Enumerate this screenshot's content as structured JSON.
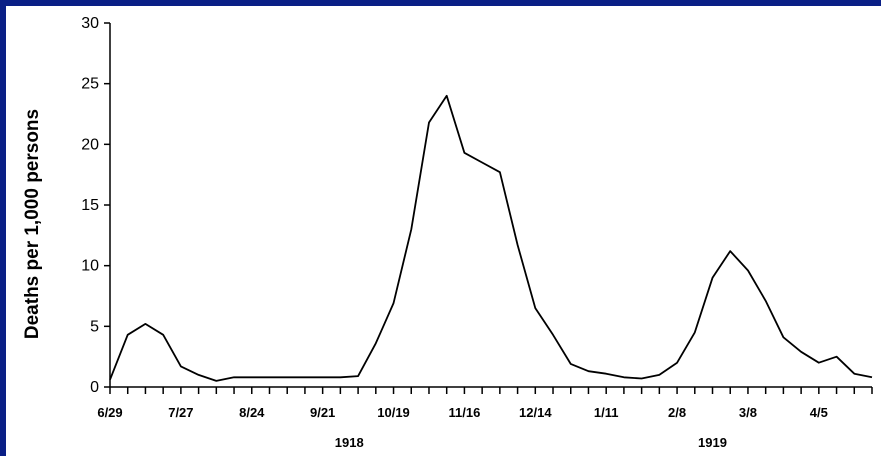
{
  "colors": {
    "border": "#0a1f86",
    "background": "#ffffff",
    "line": "#000000"
  },
  "chart_data": {
    "type": "line",
    "title": "",
    "xlabel": "",
    "ylabel": "Deaths per 1,000 persons",
    "ylim": [
      0,
      30
    ],
    "yticks": [
      0,
      5,
      10,
      15,
      20,
      25,
      30
    ],
    "grid": false,
    "legend": "none",
    "x_tick_labels": [
      "6/29",
      "7/27",
      "8/24",
      "9/21",
      "10/19",
      "11/16",
      "12/14",
      "1/11",
      "2/8",
      "3/8",
      "4/5"
    ],
    "x_tick_label_week_index": [
      0,
      4,
      8,
      12,
      16,
      20,
      24,
      28,
      32,
      36,
      40
    ],
    "year_labels": [
      {
        "label": "1918",
        "week_index": 13.5
      },
      {
        "label": "1919",
        "week_index": 34
      }
    ],
    "week_count": 44,
    "series": [
      {
        "values": [
          0.6,
          4.3,
          5.2,
          4.3,
          1.7,
          1.0,
          0.5,
          0.8,
          0.8,
          0.8,
          0.8,
          0.8,
          0.8,
          0.8,
          0.9,
          3.6,
          6.9,
          13.0,
          21.8,
          24.0,
          19.3,
          18.5,
          17.7,
          11.7,
          6.5,
          4.3,
          1.9,
          1.3,
          1.1,
          0.8,
          0.7,
          1.0,
          2.0,
          4.5,
          9.0,
          11.2,
          9.6,
          7.1,
          4.1,
          2.9,
          2.0,
          2.5,
          1.1,
          0.8
        ]
      }
    ]
  }
}
